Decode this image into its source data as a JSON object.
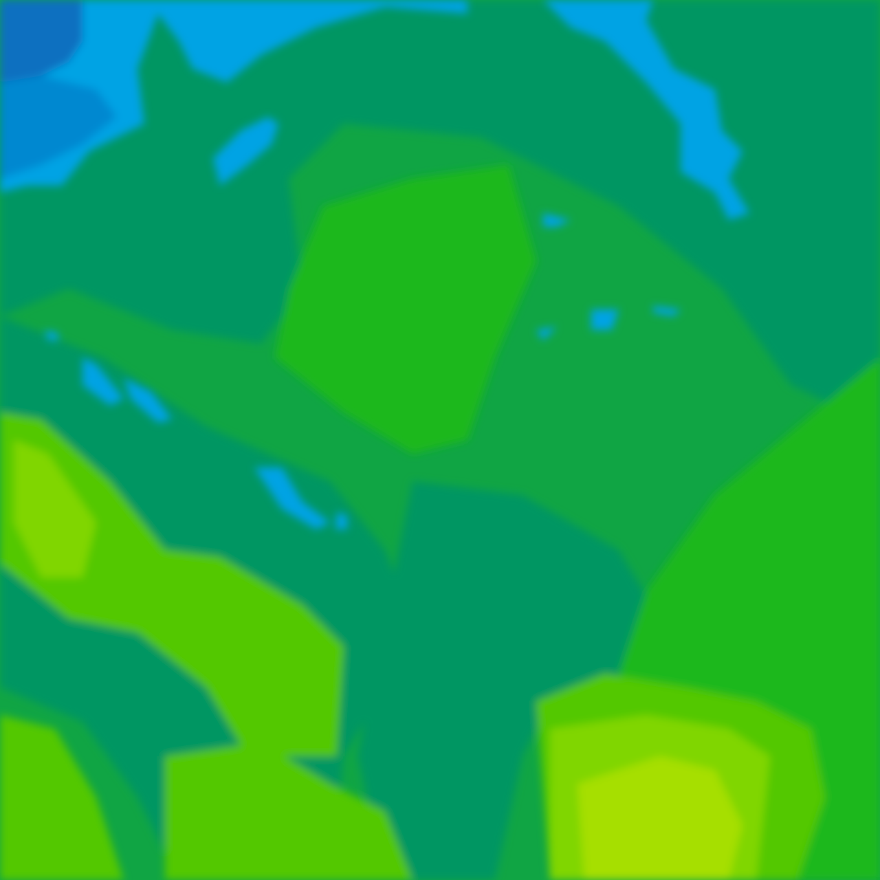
{
  "map": {
    "type": "weather-contour-tile",
    "palette": {
      "deep_blue": "#0a6fc0",
      "mid_blue": "#0688d0",
      "light_blue": "#04a3e4",
      "teal": "#069662",
      "green": "#10a544",
      "bright_green": "#1fb81c",
      "lime": "#52c804",
      "yellow_green": "#80d600",
      "yellow": "#a6df00"
    }
  }
}
